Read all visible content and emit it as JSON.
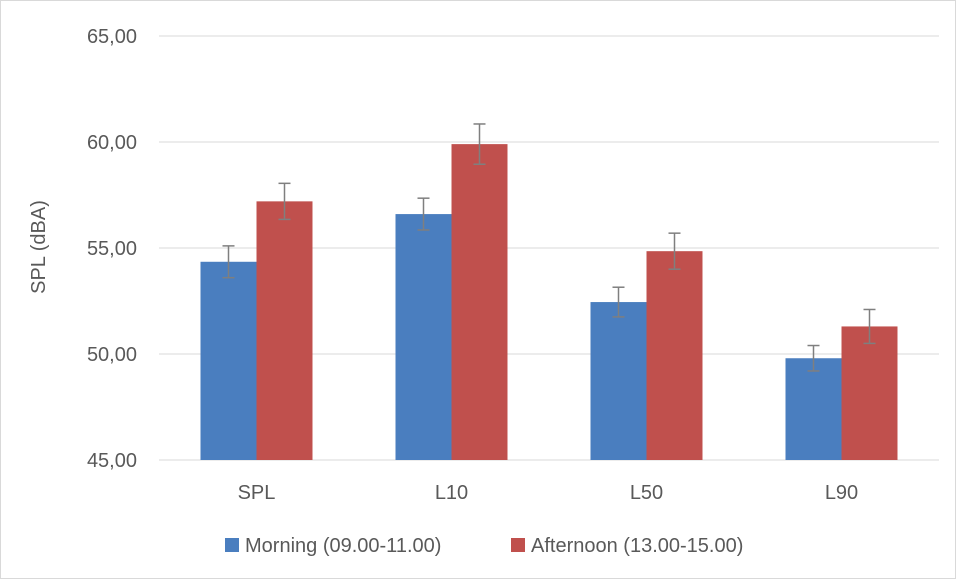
{
  "chart_data": {
    "type": "bar",
    "title": "",
    "xlabel": "",
    "ylabel": "SPL (dBA)",
    "ylim": [
      45,
      65
    ],
    "yticks": [
      "45,00",
      "50,00",
      "55,00",
      "60,00",
      "65,00"
    ],
    "categories": [
      "SPL",
      "L10",
      "L50",
      "L90"
    ],
    "series": [
      {
        "name": "Morning (09.00-11.00)",
        "color": "#4a7ebf",
        "values": [
          54.35,
          56.6,
          52.45,
          49.8
        ],
        "errors": [
          0.75,
          0.75,
          0.7,
          0.6
        ]
      },
      {
        "name": "Afternoon (13.00-15.00)",
        "color": "#c0504d",
        "values": [
          57.2,
          59.9,
          54.85,
          51.3
        ],
        "errors": [
          0.85,
          0.95,
          0.85,
          0.8
        ]
      }
    ],
    "grid": true,
    "legend": "bottom",
    "error_bar_color": "#7f7f7f",
    "gridline_color": "#d9d9d9"
  }
}
